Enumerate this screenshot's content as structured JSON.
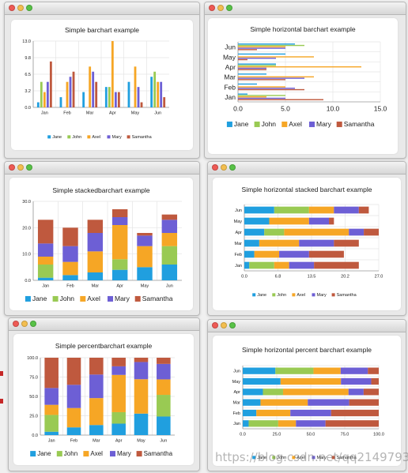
{
  "colors": {
    "Jane": "#209fdf",
    "John": "#99ca53",
    "Axel": "#f6a625",
    "Mary": "#6d5fd5",
    "Samantha": "#bf593e"
  },
  "watermark": "https://blog.csdn.net/qq21497936",
  "chart_data": [
    {
      "type": "bar",
      "title": "Simple barchart example",
      "orientation": "vertical",
      "mode": "grouped",
      "categories": [
        "Jan",
        "Feb",
        "Mar",
        "Apr",
        "May",
        "Jun"
      ],
      "ticks": [
        "0.0",
        "3.2",
        "6.5",
        "9.8",
        "13.0"
      ],
      "ylim": [
        0,
        13
      ],
      "legend_position": "bottom",
      "series": [
        {
          "name": "Jane",
          "values": [
            1,
            2,
            3,
            4,
            5,
            6
          ]
        },
        {
          "name": "John",
          "values": [
            5,
            0,
            0,
            4,
            0,
            7
          ]
        },
        {
          "name": "Axel",
          "values": [
            3,
            5,
            8,
            13,
            8,
            5
          ]
        },
        {
          "name": "Mary",
          "values": [
            5,
            6,
            7,
            3,
            4,
            5
          ]
        },
        {
          "name": "Samantha",
          "values": [
            9,
            7,
            5,
            3,
            1,
            2
          ]
        }
      ]
    },
    {
      "type": "bar",
      "title": "Simple horizontal barchart example",
      "orientation": "horizontal",
      "mode": "grouped",
      "categories": [
        "Jan",
        "Feb",
        "Mar",
        "Apr",
        "May",
        "Jun"
      ],
      "ticks": [
        "0.0",
        "5.0",
        "10.0",
        "15.0"
      ],
      "xlim": [
        0,
        15
      ],
      "legend_position": "bottom",
      "series": [
        {
          "name": "Jane",
          "values": [
            1,
            2,
            3,
            4,
            5,
            6
          ]
        },
        {
          "name": "John",
          "values": [
            5,
            0,
            0,
            4,
            0,
            7
          ]
        },
        {
          "name": "Axel",
          "values": [
            3,
            5,
            8,
            13,
            8,
            5
          ]
        },
        {
          "name": "Mary",
          "values": [
            5,
            6,
            7,
            3,
            4,
            5
          ]
        },
        {
          "name": "Samantha",
          "values": [
            9,
            7,
            5,
            3,
            1,
            2
          ]
        }
      ]
    },
    {
      "type": "bar",
      "title": "Simple stackedbarchart example",
      "orientation": "vertical",
      "mode": "stacked",
      "categories": [
        "Jan",
        "Feb",
        "Mar",
        "Apr",
        "May",
        "Jun"
      ],
      "ticks": [
        "0.0",
        "10.0",
        "20.0",
        "30.0"
      ],
      "ylim": [
        0,
        30
      ],
      "legend_position": "bottom",
      "series": [
        {
          "name": "Jane",
          "values": [
            1,
            2,
            3,
            4,
            5,
            6
          ]
        },
        {
          "name": "John",
          "values": [
            5,
            0,
            0,
            4,
            0,
            7
          ]
        },
        {
          "name": "Axel",
          "values": [
            3,
            5,
            8,
            13,
            8,
            5
          ]
        },
        {
          "name": "Mary",
          "values": [
            5,
            6,
            7,
            3,
            4,
            5
          ]
        },
        {
          "name": "Samantha",
          "values": [
            9,
            7,
            5,
            3,
            1,
            2
          ]
        }
      ]
    },
    {
      "type": "bar",
      "title": "Simple horizontal stacked barchart example",
      "orientation": "horizontal",
      "mode": "stacked",
      "categories": [
        "Jan",
        "Feb",
        "Mar",
        "Apr",
        "May",
        "Jun"
      ],
      "ticks": [
        "0.0",
        "6.8",
        "13.5",
        "20.2",
        "27.0"
      ],
      "xlim": [
        0,
        27
      ],
      "legend_position": "bottom",
      "series": [
        {
          "name": "Jane",
          "values": [
            1,
            2,
            3,
            4,
            5,
            6
          ]
        },
        {
          "name": "John",
          "values": [
            5,
            0,
            0,
            4,
            0,
            7
          ]
        },
        {
          "name": "Axel",
          "values": [
            3,
            5,
            8,
            13,
            8,
            5
          ]
        },
        {
          "name": "Mary",
          "values": [
            5,
            6,
            7,
            3,
            4,
            5
          ]
        },
        {
          "name": "Samantha",
          "values": [
            9,
            7,
            5,
            3,
            1,
            2
          ]
        }
      ]
    },
    {
      "type": "bar",
      "title": "Simple percentbarchart example",
      "orientation": "vertical",
      "mode": "percent",
      "categories": [
        "Jan",
        "Feb",
        "Mar",
        "Apr",
        "May",
        "Jun"
      ],
      "ticks": [
        "0.0",
        "25.0",
        "50.0",
        "75.0",
        "100.0"
      ],
      "ylim": [
        0,
        100
      ],
      "legend_position": "bottom",
      "series": [
        {
          "name": "Jane",
          "values": [
            1,
            2,
            3,
            4,
            5,
            6
          ]
        },
        {
          "name": "John",
          "values": [
            5,
            0,
            0,
            4,
            0,
            7
          ]
        },
        {
          "name": "Axel",
          "values": [
            3,
            5,
            8,
            13,
            8,
            5
          ]
        },
        {
          "name": "Mary",
          "values": [
            5,
            6,
            7,
            3,
            4,
            5
          ]
        },
        {
          "name": "Samantha",
          "values": [
            9,
            7,
            5,
            3,
            1,
            2
          ]
        }
      ]
    },
    {
      "type": "bar",
      "title": "Simple horizontal percent barchart example",
      "orientation": "horizontal",
      "mode": "percent",
      "categories": [
        "Jan",
        "Feb",
        "Mar",
        "Apr",
        "May",
        "Jun"
      ],
      "ticks": [
        "0.0",
        "25.0",
        "50.0",
        "75.0",
        "100.0"
      ],
      "xlim": [
        0,
        100
      ],
      "legend_position": "bottom",
      "series": [
        {
          "name": "Jane",
          "values": [
            1,
            2,
            3,
            4,
            5,
            6
          ]
        },
        {
          "name": "John",
          "values": [
            5,
            0,
            0,
            4,
            0,
            7
          ]
        },
        {
          "name": "Axel",
          "values": [
            3,
            5,
            8,
            13,
            8,
            5
          ]
        },
        {
          "name": "Mary",
          "values": [
            5,
            6,
            7,
            3,
            4,
            5
          ]
        },
        {
          "name": "Samantha",
          "values": [
            9,
            7,
            5,
            3,
            1,
            2
          ]
        }
      ]
    }
  ]
}
